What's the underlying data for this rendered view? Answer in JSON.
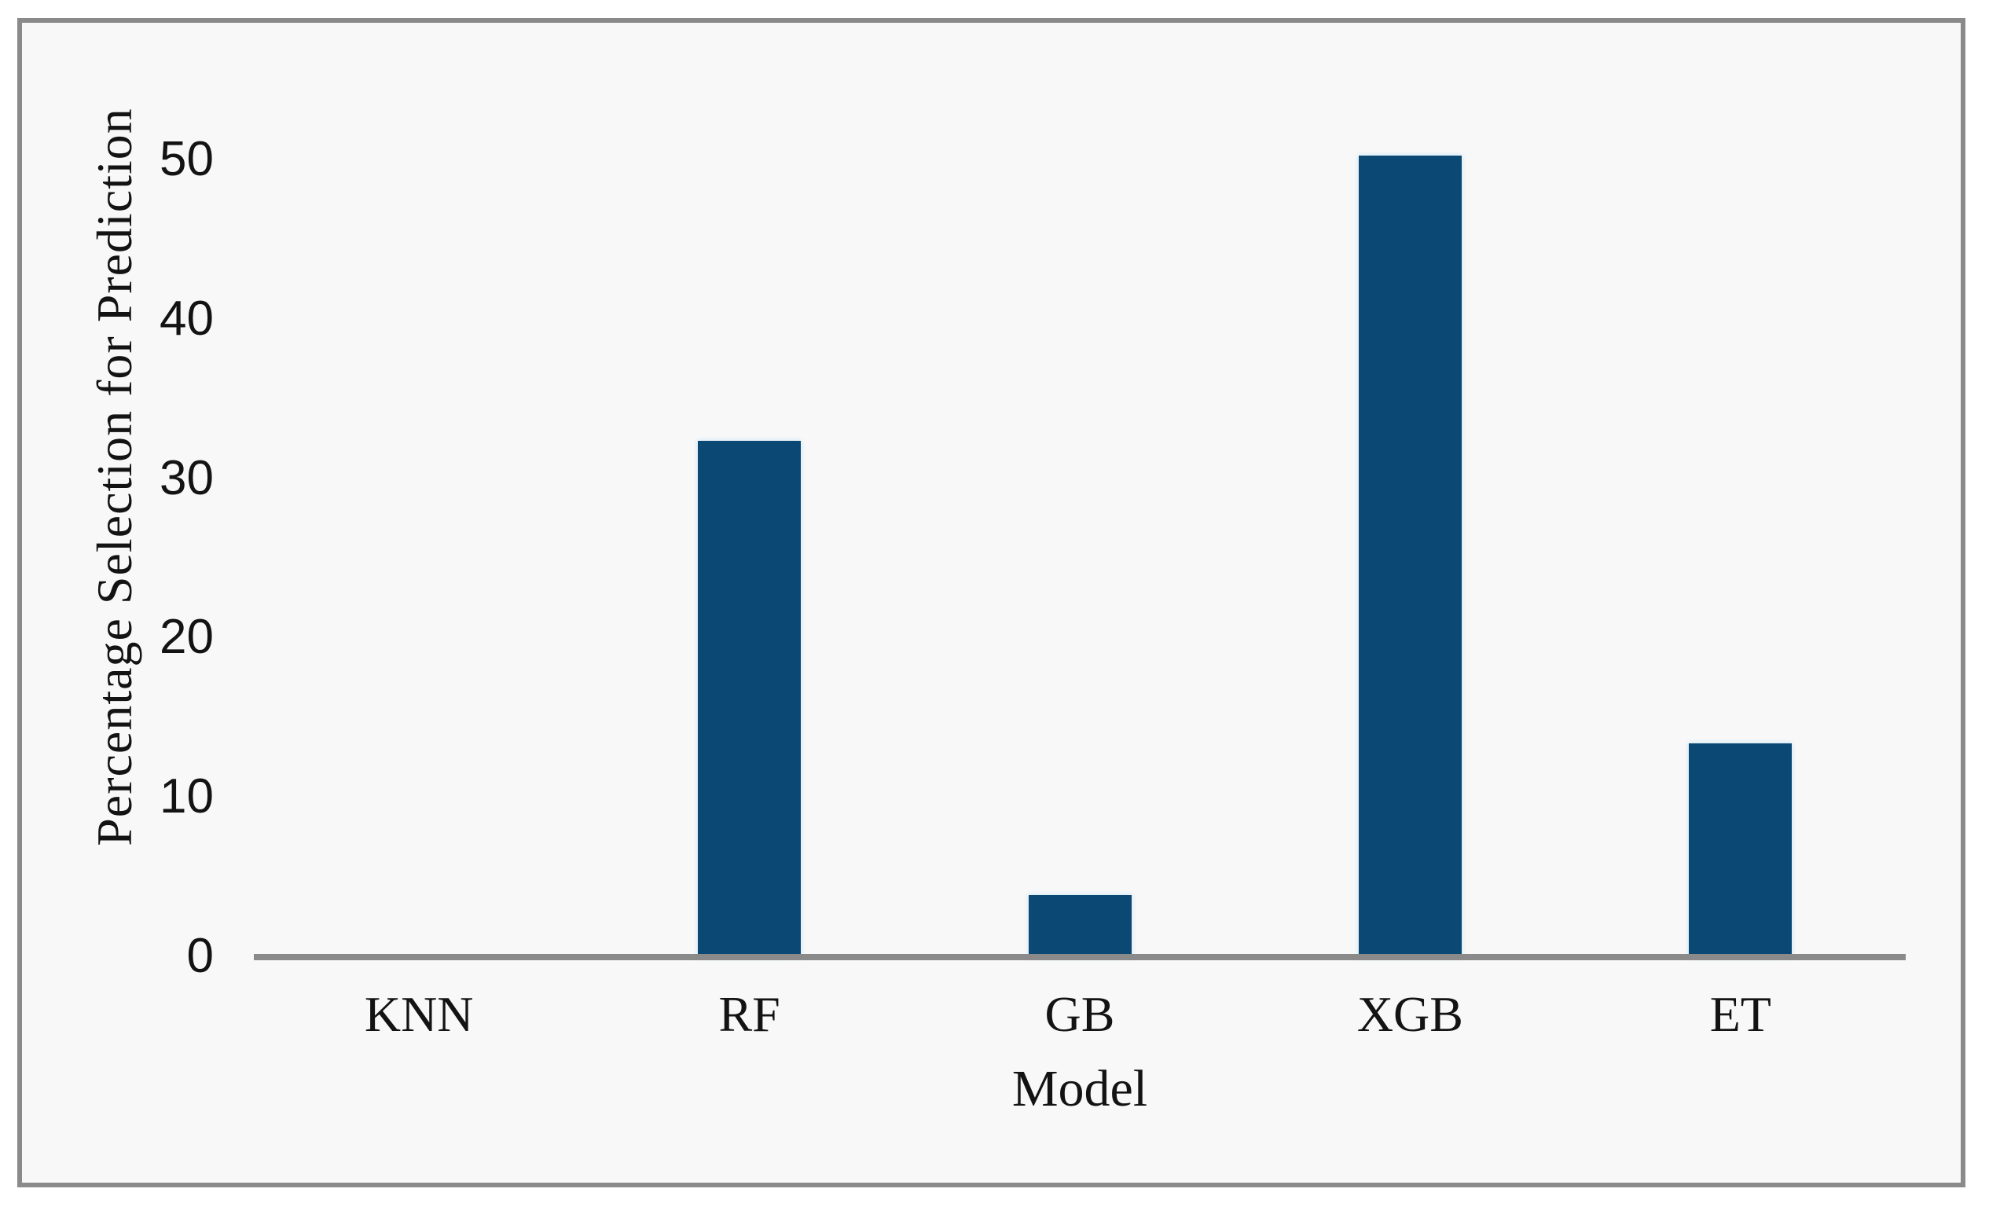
{
  "figure": {
    "background_color": "#f8f8f8",
    "frame_border_color": "#8a8a8a"
  },
  "chart_data": {
    "type": "bar",
    "title": "",
    "categories": [
      "KNN",
      "RF",
      "GB",
      "XGB",
      "ET"
    ],
    "values": [
      0,
      32.4,
      3.9,
      50.3,
      13.4
    ],
    "xlabel": "Model",
    "ylabel": "Percentage Selection for Prediction",
    "yticks": [
      0,
      10,
      20,
      30,
      40,
      50
    ],
    "ylim": [
      0,
      55
    ],
    "bar_color": "#0b4974",
    "axis_line_color": "#8a8a8a",
    "text_color": "#131313",
    "grid": false,
    "legend_position": "none"
  }
}
